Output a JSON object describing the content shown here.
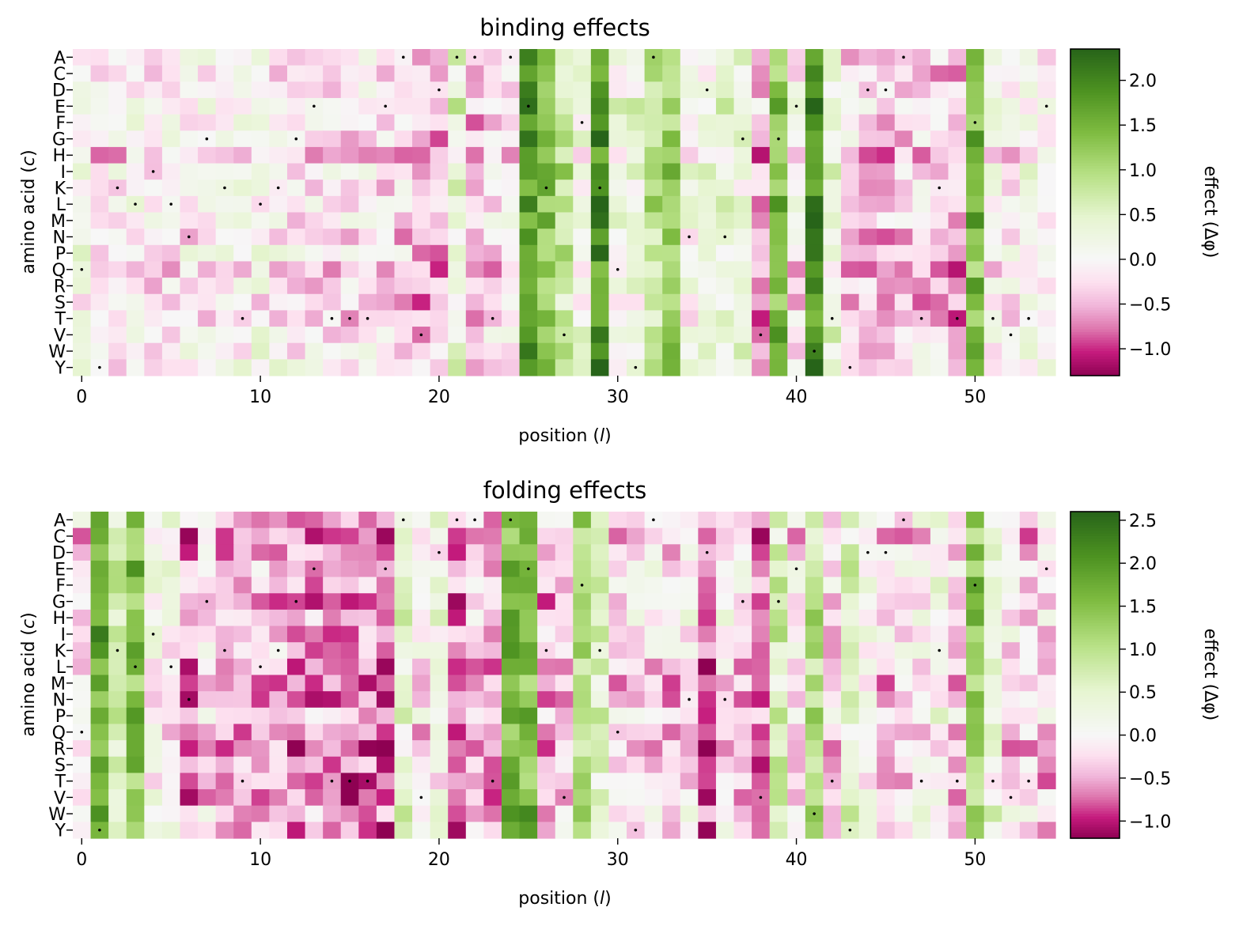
{
  "chart_data": [
    {
      "type": "heatmap",
      "title": "binding effects",
      "xlabel": "position (l)",
      "ylabel": "amino acid (c)",
      "x_ticks": [
        0,
        10,
        20,
        30,
        40,
        50
      ],
      "x_range": [
        0,
        54
      ],
      "rows": [
        "A",
        "C",
        "D",
        "E",
        "F",
        "G",
        "H",
        "I",
        "K",
        "L",
        "M",
        "N",
        "P",
        "Q",
        "R",
        "S",
        "T",
        "V",
        "W",
        "Y"
      ],
      "colorbar": {
        "label": "effect (Δφ)",
        "min": -1.3,
        "max": 2.35,
        "ticks": [
          "2.0",
          "1.5",
          "1.0",
          "0.5",
          "0.0",
          "−0.5",
          "−1.0"
        ],
        "tick_values": [
          2.0,
          1.5,
          1.0,
          0.5,
          0.0,
          -0.5,
          -1.0
        ]
      },
      "column_profile": [
        0.05,
        -0.3,
        -0.25,
        -0.05,
        -0.25,
        -0.15,
        -0.15,
        -0.05,
        0.0,
        -0.05,
        0.0,
        -0.05,
        -0.2,
        -0.25,
        -0.25,
        -0.3,
        -0.25,
        -0.3,
        -0.35,
        -0.5,
        -0.55,
        0.4,
        -0.65,
        -0.3,
        -0.2,
        1.7,
        1.2,
        0.8,
        0.2,
        1.9,
        0.15,
        0.2,
        0.9,
        1.1,
        0.0,
        0.1,
        0.3,
        0.2,
        -0.55,
        1.4,
        -0.2,
        1.9,
        0.3,
        -0.3,
        -0.4,
        -0.45,
        -0.4,
        -0.35,
        -0.3,
        -0.55,
        1.4,
        -0.1,
        -0.15,
        0.0,
        -0.05
      ],
      "wildtype_markers": [
        [
          0,
          13
        ],
        [
          1,
          19
        ],
        [
          2,
          8
        ],
        [
          3,
          9
        ],
        [
          4,
          7
        ],
        [
          5,
          9
        ],
        [
          6,
          11
        ],
        [
          7,
          5
        ],
        [
          8,
          8
        ],
        [
          9,
          16
        ],
        [
          10,
          9
        ],
        [
          11,
          8
        ],
        [
          12,
          5
        ],
        [
          13,
          3
        ],
        [
          14,
          16
        ],
        [
          15,
          16
        ],
        [
          16,
          16
        ],
        [
          17,
          3
        ],
        [
          18,
          0
        ],
        [
          19,
          17
        ],
        [
          20,
          2
        ],
        [
          21,
          0
        ],
        [
          22,
          0
        ],
        [
          23,
          16
        ],
        [
          24,
          0
        ],
        [
          25,
          3
        ],
        [
          26,
          8
        ],
        [
          27,
          17
        ],
        [
          28,
          4
        ],
        [
          29,
          8
        ],
        [
          30,
          13
        ],
        [
          31,
          19
        ],
        [
          32,
          0
        ],
        [
          34,
          11
        ],
        [
          35,
          2
        ],
        [
          36,
          11
        ],
        [
          37,
          5
        ],
        [
          38,
          17
        ],
        [
          39,
          5
        ],
        [
          40,
          3
        ],
        [
          41,
          18
        ],
        [
          42,
          16
        ],
        [
          43,
          19
        ],
        [
          44,
          2
        ],
        [
          45,
          2
        ],
        [
          46,
          0
        ],
        [
          47,
          16
        ],
        [
          48,
          8
        ],
        [
          49,
          16
        ],
        [
          50,
          4
        ],
        [
          51,
          16
        ],
        [
          52,
          17
        ],
        [
          53,
          16
        ],
        [
          54,
          3
        ]
      ]
    },
    {
      "type": "heatmap",
      "title": "folding effects",
      "xlabel": "position (l)",
      "ylabel": "amino acid (c)",
      "x_ticks": [
        0,
        10,
        20,
        30,
        40,
        50
      ],
      "x_range": [
        0,
        54
      ],
      "rows": [
        "A",
        "C",
        "D",
        "E",
        "F",
        "G",
        "H",
        "I",
        "K",
        "L",
        "M",
        "N",
        "P",
        "Q",
        "R",
        "S",
        "T",
        "V",
        "W",
        "Y"
      ],
      "colorbar": {
        "label": "effect (Δφ)",
        "min": -1.2,
        "max": 2.6,
        "ticks": [
          "2.5",
          "2.0",
          "1.5",
          "1.0",
          "0.5",
          "0.0",
          "−0.5",
          "−1.0"
        ],
        "tick_values": [
          2.5,
          2.0,
          1.5,
          1.0,
          0.5,
          0.0,
          -0.5,
          -1.0
        ]
      },
      "column_profile": [
        -0.2,
        1.8,
        0.5,
        1.5,
        0.1,
        0.0,
        -0.6,
        -0.3,
        -0.5,
        -0.4,
        -0.5,
        -0.4,
        -0.6,
        -0.6,
        -0.65,
        -0.7,
        -0.6,
        -0.8,
        0.5,
        -0.2,
        0.1,
        -0.7,
        -0.3,
        -0.5,
        1.7,
        1.6,
        -0.5,
        -0.3,
        1.2,
        0.6,
        -0.3,
        -0.1,
        -0.2,
        -0.3,
        -0.1,
        -0.9,
        -0.1,
        -0.3,
        -0.7,
        0.7,
        -0.2,
        1.0,
        -0.3,
        0.5,
        0.0,
        -0.3,
        -0.2,
        -0.1,
        0.1,
        -0.3,
        1.3,
        0.3,
        -0.2,
        -0.3,
        -0.3
      ],
      "wildtype_markers": [
        [
          0,
          13
        ],
        [
          1,
          19
        ],
        [
          2,
          8
        ],
        [
          3,
          9
        ],
        [
          4,
          7
        ],
        [
          5,
          9
        ],
        [
          6,
          11
        ],
        [
          7,
          5
        ],
        [
          8,
          8
        ],
        [
          9,
          16
        ],
        [
          10,
          9
        ],
        [
          11,
          8
        ],
        [
          12,
          5
        ],
        [
          13,
          3
        ],
        [
          14,
          16
        ],
        [
          15,
          16
        ],
        [
          16,
          16
        ],
        [
          17,
          3
        ],
        [
          18,
          0
        ],
        [
          19,
          17
        ],
        [
          20,
          2
        ],
        [
          21,
          0
        ],
        [
          22,
          0
        ],
        [
          23,
          16
        ],
        [
          24,
          0
        ],
        [
          25,
          3
        ],
        [
          26,
          8
        ],
        [
          27,
          17
        ],
        [
          28,
          4
        ],
        [
          29,
          8
        ],
        [
          30,
          13
        ],
        [
          31,
          19
        ],
        [
          32,
          0
        ],
        [
          34,
          11
        ],
        [
          35,
          2
        ],
        [
          36,
          11
        ],
        [
          37,
          5
        ],
        [
          38,
          17
        ],
        [
          39,
          5
        ],
        [
          40,
          3
        ],
        [
          41,
          18
        ],
        [
          42,
          16
        ],
        [
          43,
          19
        ],
        [
          44,
          2
        ],
        [
          45,
          2
        ],
        [
          46,
          0
        ],
        [
          47,
          16
        ],
        [
          48,
          8
        ],
        [
          49,
          16
        ],
        [
          50,
          4
        ],
        [
          51,
          16
        ],
        [
          52,
          17
        ],
        [
          53,
          16
        ],
        [
          54,
          3
        ]
      ]
    }
  ]
}
